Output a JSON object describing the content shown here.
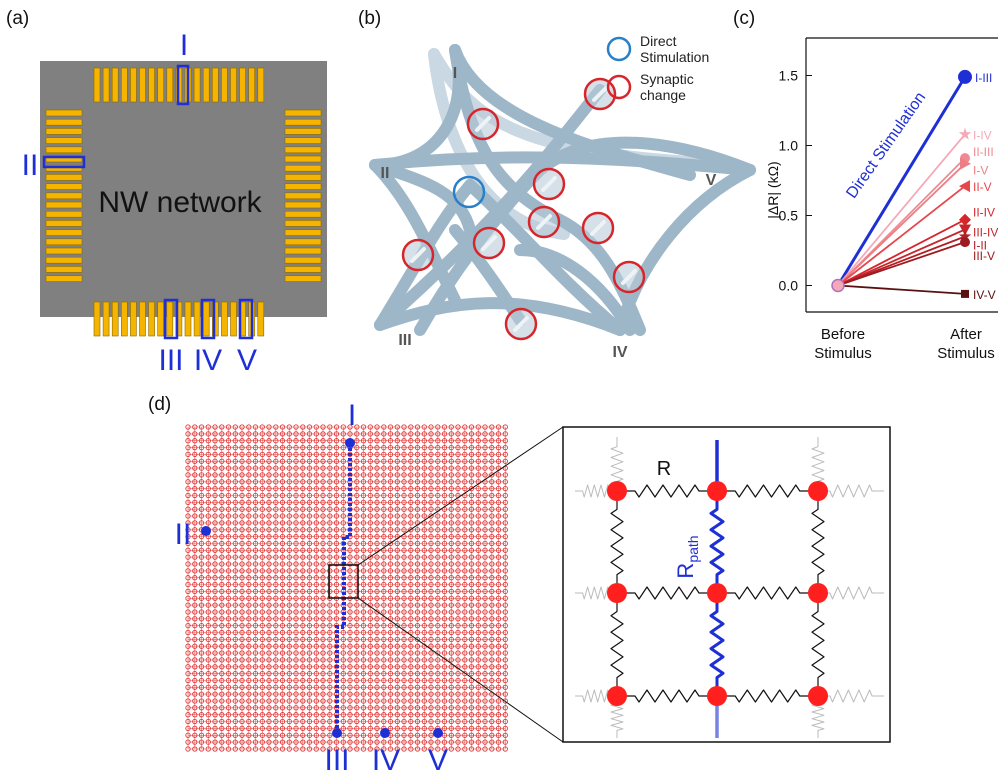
{
  "panel_a": {
    "label": "(a)",
    "chip_text": "NW network",
    "electrodes": [
      "I",
      "II",
      "III",
      "IV",
      "V"
    ],
    "colors": {
      "chip": "#808080",
      "pad": "#f4b400",
      "pad_border": "#8a6a00",
      "highlight": "#1f2fd6"
    }
  },
  "panel_b": {
    "label": "(b)",
    "legend": {
      "direct": "Direct\nStimulation",
      "synaptic": "Synaptic\nchange"
    },
    "legend_direct_1": "Direct",
    "legend_direct_2": "Stimulation",
    "legend_synaptic_1": "Synaptic",
    "legend_synaptic_2": "change",
    "nodes": [
      "I",
      "II",
      "III",
      "IV",
      "V"
    ],
    "colors": {
      "wire": "#9db7c9",
      "direct": "#2a7fc9",
      "synaptic": "#d7262b"
    }
  },
  "panel_c": {
    "label": "(c)"
  },
  "chart_data": {
    "type": "line",
    "categories": [
      "Before\nStimulus",
      "After\nStimulus"
    ],
    "xlabel_before_1": "Before",
    "xlabel_before_2": "Stimulus",
    "xlabel_after_1": "After",
    "xlabel_after_2": "Stimulus",
    "ylabel": "|ΔR| (kΩ)",
    "ylim": [
      -0.1,
      1.6
    ],
    "yticks": [
      0.0,
      0.5,
      1.0,
      1.5
    ],
    "ytick_labels": [
      "0.0",
      "0.5",
      "1.0",
      "1.5"
    ],
    "annotation": "Direct Stimulation",
    "series": [
      {
        "name": "I-III",
        "values": [
          0,
          1.49
        ],
        "color": "#1f2fd6",
        "marker": "circle"
      },
      {
        "name": "I-IV",
        "values": [
          0,
          1.08
        ],
        "color": "#f4a9b6",
        "marker": "star"
      },
      {
        "name": "II-III",
        "values": [
          0,
          0.91
        ],
        "color": "#ef8a93",
        "marker": "circle"
      },
      {
        "name": "I-V",
        "values": [
          0,
          0.87
        ],
        "color": "#ec7f86",
        "marker": "triangle-right"
      },
      {
        "name": "II-V",
        "values": [
          0,
          0.71
        ],
        "color": "#e6474d",
        "marker": "triangle-left"
      },
      {
        "name": "II-IV",
        "values": [
          0,
          0.47
        ],
        "color": "#d7262b",
        "marker": "diamond"
      },
      {
        "name": "III-IV",
        "values": [
          0,
          0.4
        ],
        "color": "#c6262b",
        "marker": "triangle-down"
      },
      {
        "name": "I-II",
        "values": [
          0,
          0.35
        ],
        "color": "#b31e24",
        "marker": "star"
      },
      {
        "name": "III-V",
        "values": [
          0,
          0.31
        ],
        "color": "#9c1b20",
        "marker": "circle"
      },
      {
        "name": "IV-V",
        "values": [
          0,
          -0.06
        ],
        "color": "#5a1010",
        "marker": "square"
      }
    ]
  },
  "panel_d": {
    "label": "(d)",
    "electrodes": [
      "I",
      "II",
      "III",
      "IV",
      "V"
    ],
    "resistor_label": "R",
    "path_label_main": "R",
    "path_label_sub": "path",
    "colors": {
      "grid_node": "#e23a3a",
      "path": "#1f2fd6",
      "resistor": "#111111"
    }
  }
}
